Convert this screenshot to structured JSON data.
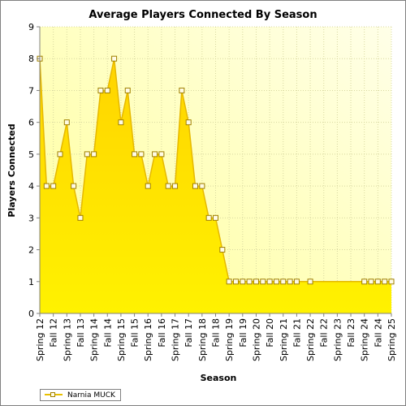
{
  "chart_data": {
    "type": "area",
    "title": "Average Players Connected By Season",
    "xlabel": "Season",
    "ylabel": "Players Connected",
    "ylim": [
      0,
      9
    ],
    "yticks": [
      "0",
      "1",
      "2",
      "3",
      "4",
      "5",
      "6",
      "7",
      "8",
      "9"
    ],
    "categories": [
      "Spring 12",
      "Fall 12",
      "Spring 13",
      "Fall 13",
      "Spring 14",
      "Fall 14",
      "Spring 15",
      "Fall 15",
      "Spring 16",
      "Fall 16",
      "Spring 17",
      "Fall 17",
      "Spring 18",
      "Fall 18",
      "Spring 19",
      "Fall 19",
      "Spring 20",
      "Fall 20",
      "Spring 21",
      "Fall 21",
      "Spring 22",
      "Fall 22",
      "Spring 23",
      "Fall 23",
      "Spring 24",
      "Fall 24",
      "Spring 25"
    ],
    "grid": true,
    "legend_position": "bottom-left",
    "series": [
      {
        "name": "Narnia MUCK",
        "color": "#ffdd00",
        "x": [
          0.0,
          0.5,
          1.0,
          1.5,
          2.0,
          2.5,
          3.0,
          3.5,
          4.0,
          4.5,
          5.0,
          5.5,
          6.0,
          6.5,
          7.0,
          7.5,
          8.0,
          8.5,
          9.0,
          9.5,
          10.0,
          10.5,
          11.0,
          11.5,
          12.0,
          12.5,
          13.0,
          13.5,
          14.0,
          14.5,
          15.0,
          15.5,
          16.0,
          16.5,
          17.0,
          17.5,
          18.0,
          18.5,
          19.0,
          20.0,
          24.0,
          24.5,
          25.0,
          25.5,
          26.0
        ],
        "values": [
          8,
          4,
          4,
          5,
          6,
          4,
          3,
          5,
          5,
          7,
          7,
          8,
          6,
          7,
          5,
          5,
          4,
          5,
          5,
          4,
          4,
          7,
          6,
          4,
          4,
          3,
          3,
          2,
          1,
          1,
          1,
          1,
          1,
          1,
          1,
          1,
          1,
          1,
          1,
          1,
          1,
          1,
          1,
          1,
          1
        ]
      }
    ]
  }
}
